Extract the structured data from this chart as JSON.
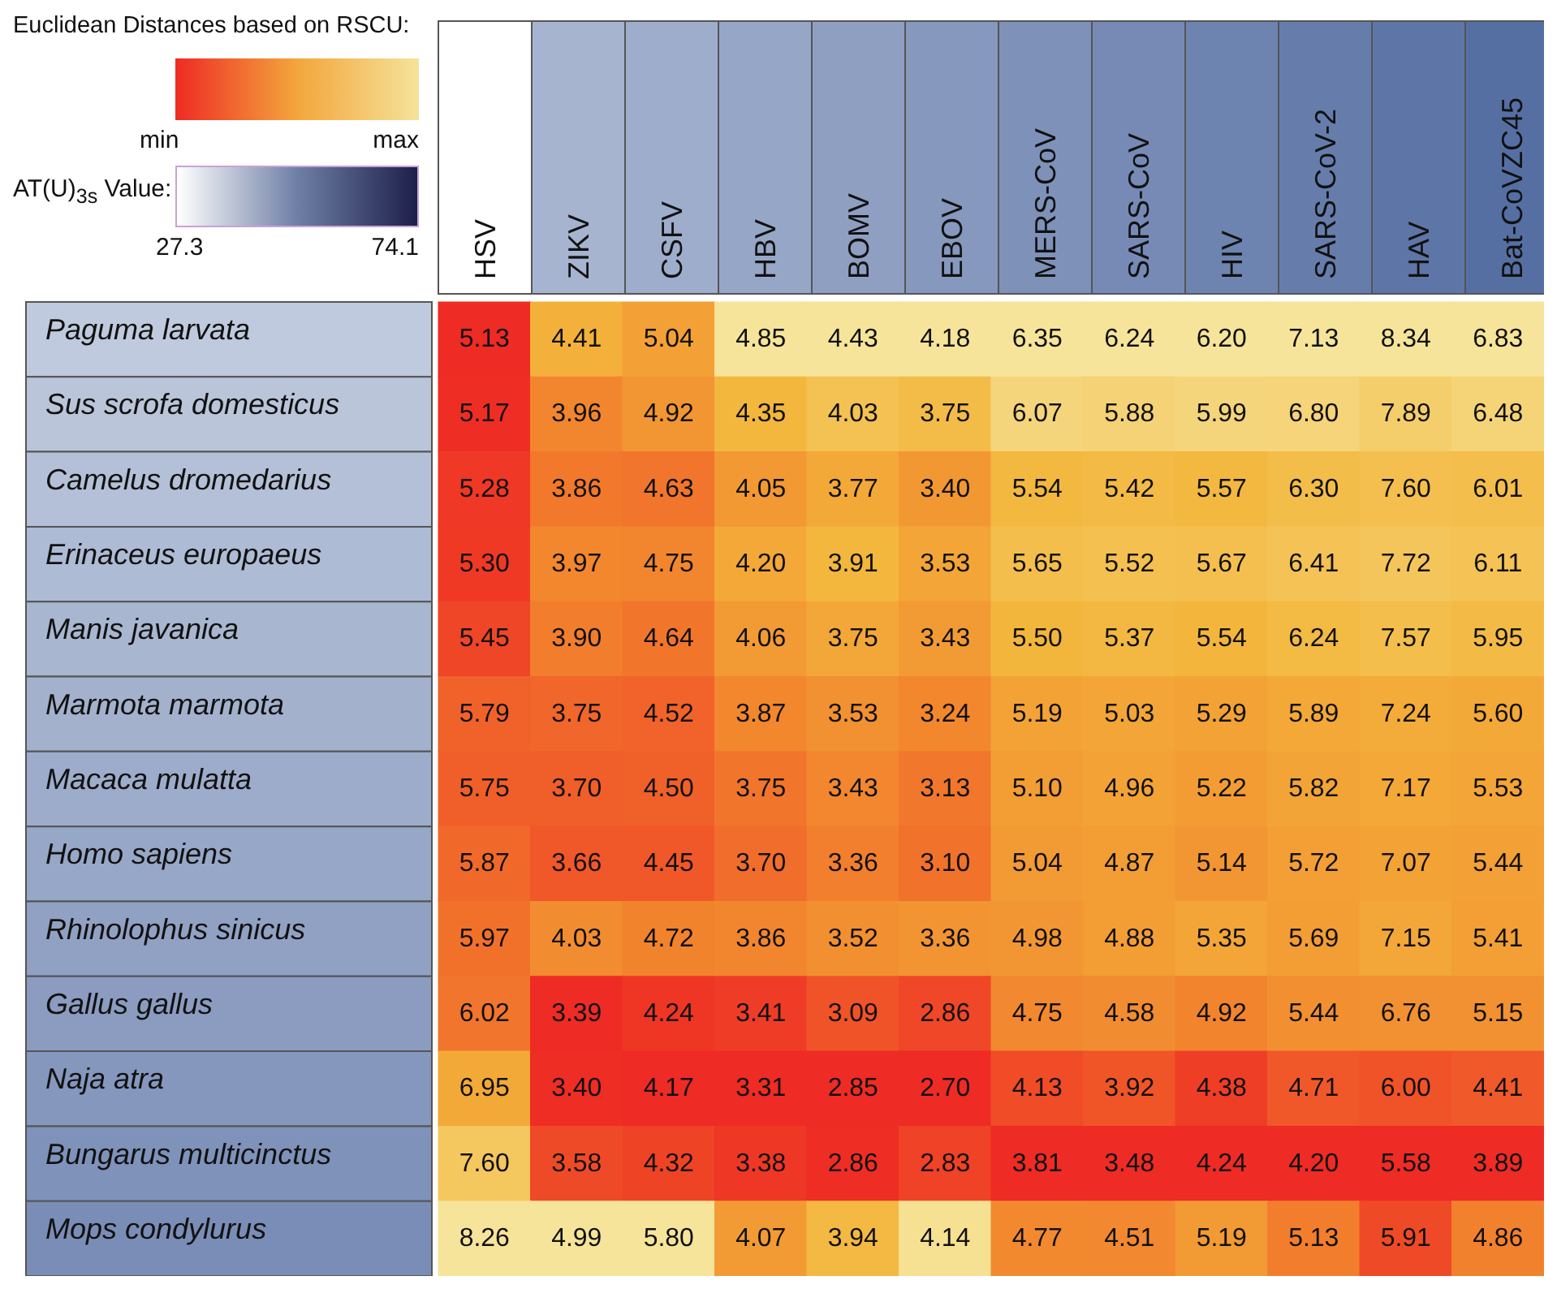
{
  "chart_data": {
    "type": "heatmap",
    "clabel": "Euclidean Distances based on RSCU:",
    "categories": [
      "HSV",
      "ZIKV",
      "CSFV",
      "HBV",
      "BOMV",
      "EBOV",
      "MERS-CoV",
      "SARS-CoV",
      "HIV",
      "SARS-CoV-2",
      "HAV",
      "Bat-CoVZC45"
    ],
    "y_categories": [
      "Paguma larvata",
      "Sus scrofa domesticus",
      "Camelus dromedarius",
      "Erinaceus europaeus",
      "Manis javanica",
      "Marmota marmota",
      "Macaca mulatta",
      "Homo sapiens",
      "Rhinolophus sinicus",
      "Gallus gallus",
      "Naja atra",
      "Bungarus multicinctus",
      "Mops condylurus"
    ],
    "cells": [
      [
        5.13,
        4.41,
        5.04,
        4.85,
        4.43,
        4.18,
        6.35,
        6.24,
        6.2,
        7.13,
        8.34,
        6.83
      ],
      [
        5.17,
        3.96,
        4.92,
        4.35,
        4.03,
        3.75,
        6.07,
        5.88,
        5.99,
        6.8,
        7.89,
        6.48
      ],
      [
        5.28,
        3.86,
        4.63,
        4.05,
        3.77,
        3.4,
        5.54,
        5.42,
        5.57,
        6.3,
        7.6,
        6.01
      ],
      [
        5.3,
        3.97,
        4.75,
        4.2,
        3.91,
        3.53,
        5.65,
        5.52,
        5.67,
        6.41,
        7.72,
        6.11
      ],
      [
        5.45,
        3.9,
        4.64,
        4.06,
        3.75,
        3.43,
        5.5,
        5.37,
        5.54,
        6.24,
        7.57,
        5.95
      ],
      [
        5.79,
        3.75,
        4.52,
        3.87,
        3.53,
        3.24,
        5.19,
        5.03,
        5.29,
        5.89,
        7.24,
        5.6
      ],
      [
        5.75,
        3.7,
        4.5,
        3.75,
        3.43,
        3.13,
        5.1,
        4.96,
        5.22,
        5.82,
        7.17,
        5.53
      ],
      [
        5.87,
        3.66,
        4.45,
        3.7,
        3.36,
        3.1,
        5.04,
        4.87,
        5.14,
        5.72,
        7.07,
        5.44
      ],
      [
        5.97,
        4.03,
        4.72,
        3.86,
        3.52,
        3.36,
        4.98,
        4.88,
        5.35,
        5.69,
        7.15,
        5.41
      ],
      [
        6.02,
        3.39,
        4.24,
        3.41,
        3.09,
        2.86,
        4.75,
        4.58,
        4.92,
        5.44,
        6.76,
        5.15
      ],
      [
        6.95,
        3.4,
        4.17,
        3.31,
        2.85,
        2.7,
        4.13,
        3.92,
        4.38,
        4.71,
        6.0,
        4.41
      ],
      [
        7.6,
        3.58,
        4.32,
        3.38,
        2.86,
        2.83,
        3.81,
        3.48,
        4.24,
        4.2,
        5.58,
        3.89
      ],
      [
        8.26,
        4.99,
        5.8,
        4.07,
        3.94,
        4.14,
        4.77,
        4.51,
        5.19,
        5.13,
        5.91,
        4.86
      ]
    ],
    "cell_labels": [
      [
        "5.13",
        "4.41",
        "5.04",
        "4.85",
        "4.43",
        "4.18",
        "6.35",
        "6.24",
        "6.20",
        "7.13",
        "8.34",
        "6.83"
      ],
      [
        "5.17",
        "3.96",
        "4.92",
        "4.35",
        "4.03",
        "3.75",
        "6.07",
        "5.88",
        "5.99",
        "6.80",
        "7.89",
        "6.48"
      ],
      [
        "5.28",
        "3.86",
        "4.63",
        "4.05",
        "3.77",
        "3.40",
        "5.54",
        "5.42",
        "5.57",
        "6.30",
        "7.60",
        "6.01"
      ],
      [
        "5.30",
        "3.97",
        "4.75",
        "4.20",
        "3.91",
        "3.53",
        "5.65",
        "5.52",
        "5.67",
        "6.41",
        "7.72",
        "6.11"
      ],
      [
        "5.45",
        "3.90",
        "4.64",
        "4.06",
        "3.75",
        "3.43",
        "5.50",
        "5.37",
        "5.54",
        "6.24",
        "7.57",
        "5.95"
      ],
      [
        "5.79",
        "3.75",
        "4.52",
        "3.87",
        "3.53",
        "3.24",
        "5.19",
        "5.03",
        "5.29",
        "5.89",
        "7.24",
        "5.60"
      ],
      [
        "5.75",
        "3.70",
        "4.50",
        "3.75",
        "3.43",
        "3.13",
        "5.10",
        "4.96",
        "5.22",
        "5.82",
        "7.17",
        "5.53"
      ],
      [
        "5.87",
        "3.66",
        "4.45",
        "3.70",
        "3.36",
        "3.10",
        "5.04",
        "4.87",
        "5.14",
        "5.72",
        "7.07",
        "5.44"
      ],
      [
        "5.97",
        "4.03",
        "4.72",
        "3.86",
        "3.52",
        "3.36",
        "4.98",
        "4.88",
        "5.35",
        "5.69",
        "7.15",
        "5.41"
      ],
      [
        "6.02",
        "3.39",
        "4.24",
        "3.41",
        "3.09",
        "2.86",
        "4.75",
        "4.58",
        "4.92",
        "5.44",
        "6.76",
        "5.15"
      ],
      [
        "6.95",
        "3.40",
        "4.17",
        "3.31",
        "2.85",
        "2.70",
        "4.13",
        "3.92",
        "4.38",
        "4.71",
        "6.00",
        "4.41"
      ],
      [
        "7.60",
        "3.58",
        "4.32",
        "3.38",
        "2.86",
        "2.83",
        "3.81",
        "3.48",
        "4.24",
        "4.20",
        "5.58",
        "3.89"
      ],
      [
        "8.26",
        "4.99",
        "5.80",
        "4.07",
        "3.94",
        "4.14",
        "4.77",
        "4.51",
        "5.19",
        "5.13",
        "5.91",
        "4.86"
      ]
    ],
    "annotations": [
      "min",
      "max",
      "AT(U)$_{3s}$ Value:",
      "27.3",
      "74.1"
    ]
  }
}
